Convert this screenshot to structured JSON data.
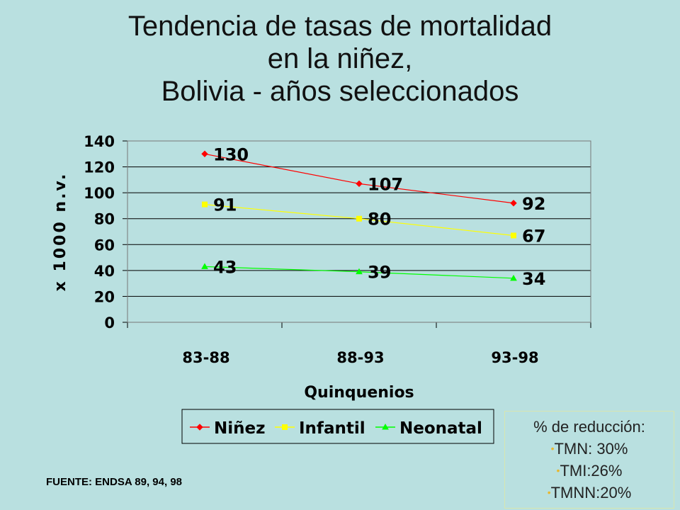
{
  "title_lines": [
    "Tendencia de tasas de mortalidad",
    "en la niñez,",
    "Bolivia - años seleccionados"
  ],
  "chart_data": {
    "type": "line",
    "categories": [
      "83-88",
      "88-93",
      "93-98"
    ],
    "series": [
      {
        "name": "Niñez",
        "values": [
          130,
          107,
          92
        ],
        "color": "#ff0000",
        "marker": "diamond"
      },
      {
        "name": "Infantil",
        "values": [
          91,
          80,
          67
        ],
        "color": "#ffff00",
        "marker": "square"
      },
      {
        "name": "Neonatal",
        "values": [
          43,
          39,
          34
        ],
        "color": "#00ff00",
        "marker": "triangle"
      }
    ],
    "xlabel": "Quinquenios",
    "ylabel": "x 1000 n.v.",
    "ylim": [
      0,
      140
    ],
    "yticks": [
      0,
      20,
      40,
      60,
      80,
      100,
      120,
      140
    ],
    "grid": true,
    "legend": "bottom"
  },
  "source": "FUENTE: ENDSA 89, 94, 98",
  "reduction": {
    "heading": "% de reducción:",
    "items": [
      "TMN: 30%",
      "TMI:26%",
      "TMNN:20%"
    ],
    "bullet": "•"
  }
}
